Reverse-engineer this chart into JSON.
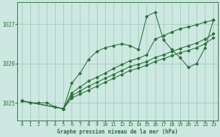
{
  "title": "Graphe pression niveau de la mer (hPa)",
  "bg_color": "#cce8e0",
  "grid_color": "#a8cfc4",
  "line_color": "#2d6e3e",
  "xlim": [
    -0.5,
    23.5
  ],
  "ylim": [
    1024.55,
    1027.55
  ],
  "yticks": [
    1025,
    1026,
    1027
  ],
  "xticks": [
    0,
    1,
    2,
    3,
    4,
    5,
    6,
    7,
    8,
    9,
    10,
    11,
    12,
    13,
    14,
    15,
    16,
    17,
    18,
    19,
    20,
    21,
    22,
    23
  ],
  "series": [
    {
      "x": [
        0,
        1,
        2,
        3,
        4,
        5,
        6,
        7,
        8,
        9,
        10,
        11,
        12,
        13,
        14,
        15,
        16,
        17,
        18,
        19,
        20,
        21,
        22,
        23
      ],
      "y": [
        1025.05,
        1025.0,
        1025.0,
        1025.0,
        1024.9,
        1024.85,
        1025.5,
        1025.75,
        1026.1,
        1026.3,
        1026.4,
        1026.45,
        1026.5,
        1026.45,
        1026.35,
        1027.2,
        1027.3,
        1026.6,
        1026.35,
        1026.15,
        1025.9,
        1026.0,
        1026.4,
        1027.1
      ]
    },
    {
      "x": [
        0,
        5,
        6,
        7,
        8,
        9,
        10,
        11,
        12,
        13,
        14,
        15,
        16,
        17,
        18,
        19,
        20,
        21,
        22,
        23
      ],
      "y": [
        1025.05,
        1024.85,
        1025.25,
        1025.4,
        1025.55,
        1025.65,
        1025.75,
        1025.87,
        1025.97,
        1026.07,
        1026.13,
        1026.22,
        1026.62,
        1026.7,
        1026.8,
        1026.88,
        1026.93,
        1026.98,
        1027.05,
        1027.1
      ]
    },
    {
      "x": [
        0,
        5,
        6,
        7,
        8,
        9,
        10,
        11,
        12,
        13,
        14,
        15,
        16,
        17,
        18,
        19,
        20,
        21,
        22,
        23
      ],
      "y": [
        1025.05,
        1024.85,
        1025.18,
        1025.3,
        1025.42,
        1025.52,
        1025.62,
        1025.72,
        1025.82,
        1025.92,
        1025.98,
        1026.05,
        1026.15,
        1026.22,
        1026.3,
        1026.38,
        1026.45,
        1026.52,
        1026.62,
        1026.75
      ]
    },
    {
      "x": [
        0,
        5,
        6,
        7,
        8,
        9,
        10,
        11,
        12,
        13,
        14,
        15,
        16,
        17,
        18,
        19,
        20,
        21,
        22,
        23
      ],
      "y": [
        1025.05,
        1024.85,
        1025.12,
        1025.22,
        1025.32,
        1025.42,
        1025.52,
        1025.62,
        1025.72,
        1025.82,
        1025.88,
        1025.95,
        1026.05,
        1026.12,
        1026.2,
        1026.27,
        1026.33,
        1026.4,
        1026.5,
        1026.65
      ]
    }
  ]
}
